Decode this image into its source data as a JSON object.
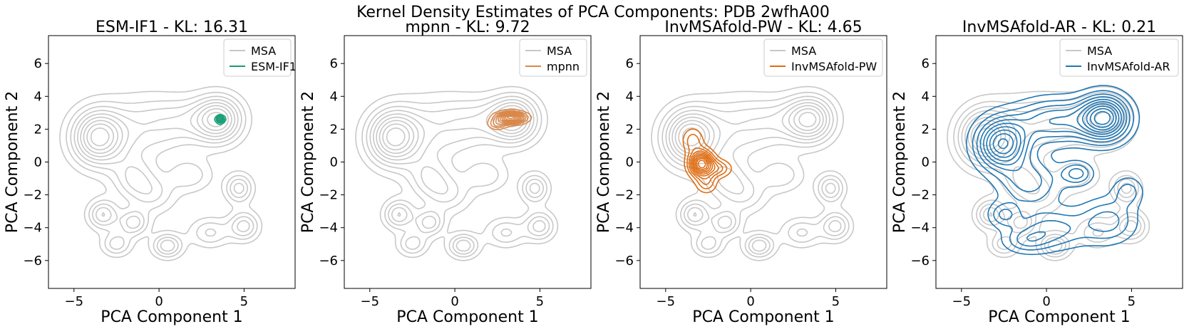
{
  "chart_data": {
    "title": "Kernel Density Estimates of PCA Components: PDB 2wfhA00",
    "type": "kde-contour",
    "reference_series": {
      "name": "MSA",
      "color": "#c8c8c8"
    },
    "xlim": [
      -6.5,
      8
    ],
    "ylim": [
      -7.7,
      7.7
    ],
    "xticks": [
      -5,
      0,
      5
    ],
    "yticks": [
      6,
      4,
      2,
      0,
      -2,
      -4,
      -6
    ],
    "xlabel": "PCA Component 1",
    "ylabel": "PCA Component 2",
    "reference_density": [
      {
        "x": -3.6,
        "y": 1.5,
        "w": 1.0,
        "sx": 1.05,
        "sy": 1.15
      },
      {
        "x": 3.5,
        "y": 2.6,
        "w": 0.85,
        "sx": 0.95,
        "sy": 0.95
      },
      {
        "x": -1.0,
        "y": 2.0,
        "w": 0.35,
        "sx": 1.6,
        "sy": 1.4
      },
      {
        "x": 1.5,
        "y": 2.5,
        "w": 0.3,
        "sx": 1.4,
        "sy": 1.0
      },
      {
        "x": -1.5,
        "y": -1.0,
        "w": 0.4,
        "sx": 0.9,
        "sy": 0.9
      },
      {
        "x": -0.3,
        "y": -2.0,
        "w": 0.3,
        "sx": 0.9,
        "sy": 0.8
      },
      {
        "x": 1.8,
        "y": -0.8,
        "w": 0.3,
        "sx": 0.9,
        "sy": 0.7
      },
      {
        "x": 4.7,
        "y": -1.6,
        "w": 0.5,
        "sx": 0.55,
        "sy": 0.6
      },
      {
        "x": -3.3,
        "y": -3.2,
        "w": 0.55,
        "sx": 0.6,
        "sy": 0.6
      },
      {
        "x": -1.5,
        "y": -3.7,
        "w": 0.5,
        "sx": 0.6,
        "sy": 0.55
      },
      {
        "x": 0.5,
        "y": -5.1,
        "w": 0.55,
        "sx": 0.6,
        "sy": 0.5
      },
      {
        "x": -2.5,
        "y": -5.0,
        "w": 0.4,
        "sx": 0.6,
        "sy": 0.5
      },
      {
        "x": 5.0,
        "y": -3.9,
        "w": 0.5,
        "sx": 0.6,
        "sy": 0.6
      },
      {
        "x": 3.0,
        "y": -4.3,
        "w": 0.35,
        "sx": 0.8,
        "sy": 0.6
      }
    ],
    "panels": [
      {
        "title": "ESM-IF1 - KL: 16.31",
        "model": "ESM-IF1",
        "kl": 16.31,
        "color": "#1a9e77",
        "legend": [
          "MSA",
          "ESM-IF1"
        ],
        "density": [
          {
            "x": 3.6,
            "y": 2.6,
            "w": 1.0,
            "sx": 0.16,
            "sy": 0.14
          }
        ]
      },
      {
        "title": "mpnn - KL: 9.72",
        "model": "mpnn",
        "kl": 9.72,
        "color": "#d9884a",
        "legend": [
          "MSA",
          "mpnn"
        ],
        "density": [
          {
            "x": 3.3,
            "y": 2.7,
            "w": 1.0,
            "sx": 0.55,
            "sy": 0.22
          },
          {
            "x": 2.5,
            "y": 2.3,
            "w": 0.3,
            "sx": 0.35,
            "sy": 0.2
          }
        ]
      },
      {
        "title": "InvMSAfold-PW - KL: 4.65",
        "model": "InvMSAfold-PW",
        "kl": 4.65,
        "color": "#e06c10",
        "legend": [
          "MSA",
          "InvMSAfold-PW"
        ],
        "density": [
          {
            "x": -2.9,
            "y": -0.1,
            "w": 1.0,
            "sx": 0.45,
            "sy": 0.5
          },
          {
            "x": -3.4,
            "y": 1.3,
            "w": 0.25,
            "sx": 0.4,
            "sy": 0.5
          },
          {
            "x": -1.9,
            "y": -0.4,
            "w": 0.3,
            "sx": 0.5,
            "sy": 0.35
          },
          {
            "x": -2.6,
            "y": -1.3,
            "w": 0.25,
            "sx": 0.4,
            "sy": 0.4
          }
        ]
      },
      {
        "title": "InvMSAfold-AR - KL: 0.21",
        "model": "InvMSAfold-AR",
        "kl": 0.21,
        "color": "#1f77b4",
        "legend": [
          "MSA",
          "InvMSAfold-AR"
        ],
        "density": [
          {
            "x": -2.6,
            "y": 1.1,
            "w": 0.9,
            "sx": 1.0,
            "sy": 1.0
          },
          {
            "x": 3.4,
            "y": 2.7,
            "w": 1.0,
            "sx": 0.95,
            "sy": 0.9
          },
          {
            "x": 0.5,
            "y": 2.5,
            "w": 0.5,
            "sx": 1.6,
            "sy": 0.9
          },
          {
            "x": 1.8,
            "y": -0.7,
            "w": 0.35,
            "sx": 0.6,
            "sy": 0.45
          },
          {
            "x": -1.0,
            "y": -1.2,
            "w": 0.35,
            "sx": 1.2,
            "sy": 1.0
          },
          {
            "x": -2.5,
            "y": -3.2,
            "w": 0.3,
            "sx": 0.6,
            "sy": 0.5
          },
          {
            "x": 0.3,
            "y": -4.1,
            "w": 0.35,
            "sx": 1.4,
            "sy": 0.8
          },
          {
            "x": 3.6,
            "y": -3.6,
            "w": 0.35,
            "sx": 1.1,
            "sy": 0.9
          },
          {
            "x": -1.2,
            "y": -4.8,
            "w": 0.25,
            "sx": 0.9,
            "sy": 0.5
          },
          {
            "x": 4.8,
            "y": -1.8,
            "w": 0.25,
            "sx": 0.6,
            "sy": 0.6
          }
        ]
      }
    ]
  }
}
